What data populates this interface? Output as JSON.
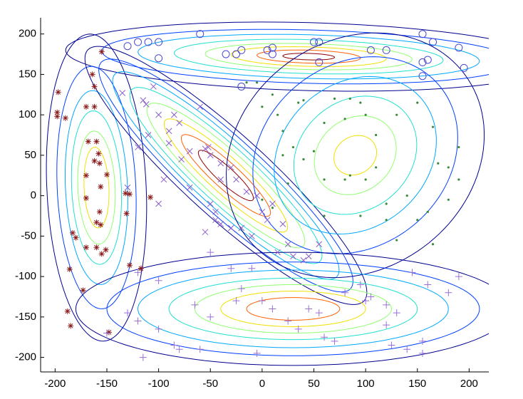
{
  "chart_data": {
    "type": "scatter",
    "xlim": [
      -214,
      219
    ],
    "ylim": [
      -218,
      220
    ],
    "xticks": [
      -200,
      -150,
      -100,
      -50,
      0,
      50,
      100,
      150,
      200
    ],
    "yticks": [
      -200,
      -150,
      -100,
      -50,
      0,
      50,
      100,
      150,
      200
    ],
    "contour_colors": [
      "#00008f",
      "#0040ff",
      "#00a8ff",
      "#20e0d0",
      "#90ff70",
      "#f0e000",
      "#ff6000",
      "#8f0000"
    ],
    "components": [
      {
        "center": [
          45,
          172
        ],
        "angle": -2,
        "ellipses": [
          [
            235,
            42
          ],
          [
            200,
            33
          ],
          [
            165,
            27
          ],
          [
            130,
            21
          ],
          [
            100,
            16
          ],
          [
            75,
            12
          ],
          [
            50,
            8
          ],
          [
            25,
            4
          ]
        ]
      },
      {
        "center": [
          -160,
          10
        ],
        "angle": 92,
        "ellipses": [
          [
            190,
            48
          ],
          [
            150,
            38
          ],
          [
            120,
            30
          ],
          [
            95,
            24
          ],
          [
            70,
            18
          ],
          [
            50,
            12
          ]
        ]
      },
      {
        "center": [
          -35,
          25
        ],
        "angle": -50,
        "ellipses": [
          [
            205,
            45
          ],
          [
            185,
            40
          ],
          [
            165,
            35
          ],
          [
            140,
            30
          ],
          [
            115,
            25
          ],
          [
            90,
            19
          ],
          [
            65,
            14
          ],
          [
            40,
            9
          ]
        ]
      },
      {
        "center": [
          90,
          50
        ],
        "angle": 70,
        "ellipses": [
          [
            155,
            120
          ],
          [
            125,
            95
          ],
          [
            100,
            75
          ],
          [
            75,
            57
          ],
          [
            50,
            38
          ],
          [
            25,
            20
          ]
        ]
      },
      {
        "center": [
          30,
          -140
        ],
        "angle": 0,
        "ellipses": [
          [
            210,
            70
          ],
          [
            180,
            58
          ],
          [
            150,
            48
          ],
          [
            120,
            38
          ],
          [
            95,
            30
          ],
          [
            70,
            22
          ],
          [
            45,
            14
          ]
        ]
      }
    ],
    "series": [
      {
        "marker": "asterisk",
        "color": "#8b1a1a",
        "x": [
          -197,
          -198,
          -198,
          -190,
          -183,
          -180,
          -186,
          -188,
          -185,
          -173,
          -170,
          -170,
          -162,
          -164,
          -155,
          -162,
          -168,
          -160,
          -158,
          -157,
          -162,
          -150,
          -156,
          -170,
          -157,
          -160,
          -156,
          -151,
          -155,
          -132,
          -128,
          -131,
          -128,
          -117,
          -108,
          -148,
          -160,
          -170
        ],
        "y": [
          128,
          103,
          98,
          96,
          -46,
          -52,
          -91,
          -143,
          -161,
          -117,
          -64,
          110,
          110,
          150,
          178,
          135,
          67,
          67,
          52,
          40,
          43,
          26,
          11,
          -3,
          -20,
          -33,
          -36,
          -67,
          -72,
          3,
          2,
          -22,
          -86,
          -90,
          -2,
          -169,
          -64,
          25
        ]
      },
      {
        "marker": "cross",
        "color": "#8a5ec8",
        "x": [
          -135,
          -115,
          -112,
          -100,
          -90,
          -85,
          -80,
          -60,
          -90,
          -70,
          -78,
          -55,
          -52,
          -50,
          -40,
          -30,
          -25,
          -15,
          -5,
          -40,
          -50,
          -45,
          -40,
          -30,
          -20,
          0,
          5,
          10,
          20,
          25,
          40,
          45,
          55,
          15,
          -10,
          30,
          -45,
          -100,
          -130,
          -110,
          -55,
          -95,
          -120,
          -105,
          -70
        ],
        "y": [
          127,
          118,
          113,
          100,
          80,
          100,
          90,
          110,
          65,
          55,
          45,
          58,
          60,
          50,
          40,
          35,
          20,
          5,
          0,
          20,
          -10,
          -20,
          -35,
          -40,
          -40,
          -20,
          -30,
          -10,
          -35,
          -60,
          -80,
          -75,
          -60,
          -70,
          -50,
          -75,
          -30,
          -10,
          10,
          75,
          -45,
          20,
          60,
          135,
          10
        ]
      },
      {
        "marker": "plus",
        "color": "#9a70d8",
        "x": [
          -150,
          -120,
          -100,
          -85,
          -80,
          -60,
          -50,
          -100,
          -120,
          -50,
          -30,
          -10,
          -20,
          -25,
          0,
          10,
          25,
          35,
          45,
          55,
          60,
          70,
          80,
          95,
          100,
          105,
          120,
          130,
          120,
          125,
          140,
          145,
          155,
          160,
          180,
          190,
          155,
          -5,
          -65,
          -115,
          -130
        ],
        "y": [
          -170,
          -155,
          -165,
          -185,
          -190,
          -190,
          -150,
          -105,
          -95,
          -70,
          -90,
          -90,
          -115,
          -130,
          -130,
          -140,
          -155,
          -165,
          -140,
          -145,
          -175,
          -180,
          -120,
          -110,
          -130,
          -125,
          -135,
          -145,
          -160,
          -185,
          -190,
          -95,
          -195,
          -110,
          -120,
          -100,
          -180,
          -195,
          -135,
          -200,
          -145
        ]
      },
      {
        "marker": "dot",
        "color": "#3a8a3a",
        "x": [
          -15,
          -5,
          0,
          10,
          15,
          20,
          20,
          30,
          35,
          40,
          60,
          70,
          80,
          85,
          95,
          100,
          110,
          130,
          150,
          165,
          170,
          180,
          190,
          190,
          180,
          160,
          150,
          120,
          95,
          85,
          80,
          60,
          50,
          40,
          25,
          10,
          0,
          60,
          110,
          140,
          165,
          130,
          120,
          100
        ],
        "y": [
          140,
          140,
          110,
          125,
          100,
          80,
          50,
          60,
          115,
          118,
          90,
          120,
          95,
          120,
          115,
          100,
          75,
          100,
          115,
          85,
          40,
          35,
          20,
          60,
          -5,
          -20,
          -30,
          -10,
          -25,
          25,
          20,
          20,
          55,
          45,
          15,
          -15,
          -5,
          -25,
          35,
          0,
          -60,
          -55,
          -30,
          20
        ]
      },
      {
        "marker": "circle",
        "color": "#4a4ad0",
        "x": [
          -60,
          -130,
          -120,
          -110,
          -100,
          -100,
          -25,
          -20,
          -20,
          5,
          10,
          50,
          55,
          55,
          105,
          120,
          155,
          155,
          160,
          165,
          190,
          195,
          155,
          -35,
          10
        ],
        "y": [
          200,
          185,
          190,
          190,
          190,
          170,
          175,
          180,
          135,
          180,
          175,
          190,
          190,
          165,
          180,
          180,
          200,
          165,
          168,
          190,
          183,
          158,
          148,
          175,
          183
        ]
      }
    ]
  }
}
